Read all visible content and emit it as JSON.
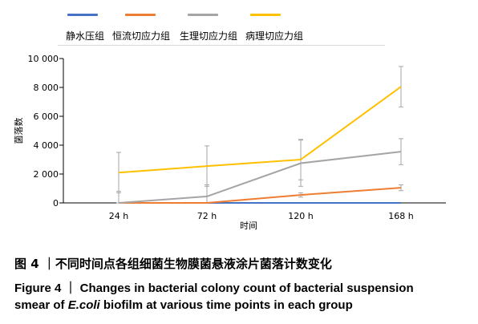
{
  "chart_data": {
    "type": "line",
    "x": [
      "24 h",
      "72 h",
      "120 h",
      "168 h"
    ],
    "xlabel": "时间",
    "ylabel": "菌落数",
    "ylim": [
      0,
      10000
    ],
    "yticks": [
      0,
      2000,
      4000,
      6000,
      8000,
      10000
    ],
    "ytick_labels": [
      "0",
      "2 000",
      "4 000",
      "6 000",
      "8 000",
      "10 000"
    ],
    "legend_position": "top",
    "grid": false,
    "series": [
      {
        "name": "静水压组",
        "color": "#4472c4",
        "values": [
          0,
          0,
          0,
          0
        ],
        "errors": [
          0,
          0,
          0,
          0
        ]
      },
      {
        "name": "恒流切应力组",
        "color": "#ed7d31",
        "values": [
          0,
          0,
          550,
          1050
        ],
        "errors": [
          0,
          0,
          150,
          200
        ]
      },
      {
        "name": "生理切应力组",
        "color": "#a5a5a5",
        "values": [
          0,
          450,
          2750,
          3550
        ],
        "errors": [
          800,
          800,
          1600,
          900
        ]
      },
      {
        "name": "病理切应力组",
        "color": "#ffc000",
        "values": [
          2100,
          2550,
          3000,
          8050
        ],
        "errors": [
          1400,
          1400,
          1400,
          1400
        ]
      }
    ]
  },
  "caption": {
    "cn": "图 4 ｜不同时间点各组细菌生物膜菌悬液涂片菌落计数变化",
    "en_line1": "Figure 4 ｜ Changes in bacterial colony count of bacterial suspension",
    "en_line2_pre": "smear of ",
    "en_line2_italic": "E.coli",
    "en_line2_post": " biofilm at various time points in each group"
  }
}
